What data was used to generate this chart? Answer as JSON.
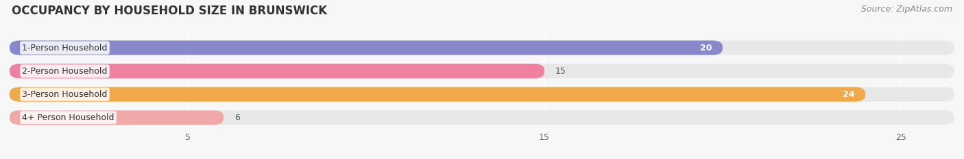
{
  "title": "OCCUPANCY BY HOUSEHOLD SIZE IN BRUNSWICK",
  "source": "Source: ZipAtlas.com",
  "categories": [
    "1-Person Household",
    "2-Person Household",
    "3-Person Household",
    "4+ Person Household"
  ],
  "values": [
    20,
    15,
    24,
    6
  ],
  "bar_colors": [
    "#8888cc",
    "#f080a0",
    "#f0a848",
    "#f0a8a8"
  ],
  "xlim": [
    0,
    26.5
  ],
  "xticks": [
    5,
    15,
    25
  ],
  "background_color": "#f7f7f7",
  "bar_bg_color": "#e8e8e8",
  "title_fontsize": 12,
  "label_fontsize": 9,
  "value_fontsize": 9,
  "source_fontsize": 9
}
